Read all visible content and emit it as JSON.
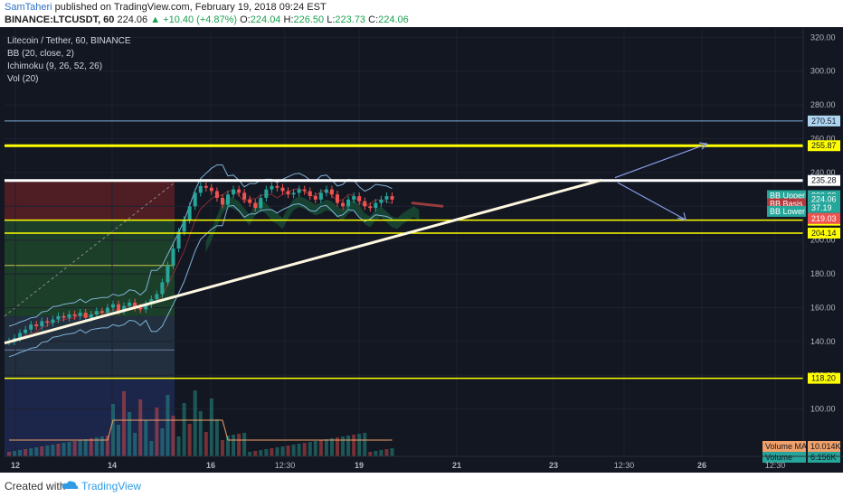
{
  "header": {
    "author": "SamTaheri",
    "published_text": " published on TradingView.com, February 19, 2018 09:24 EST",
    "symbol_line": "BINANCE:LTCUSDT, 60",
    "last": "224.06",
    "change": "▲ +10.40 (+4.87%)",
    "o_label": "O:",
    "o": "224.04",
    "h_label": "H:",
    "h": "226.50",
    "l_label": "L:",
    "l": "223.73",
    "c_label": "C:",
    "c": "224.06"
  },
  "legend": {
    "title": "Litecoin / Tether, 60, BINANCE",
    "indicators": [
      "BB (20, close, 2)",
      "Ichimoku (9, 26, 52, 26)",
      "Vol (20)"
    ]
  },
  "colors": {
    "background": "#131722",
    "candle_up": "#26a69a",
    "candle_down": "#ef5350",
    "yellow_level": "#ffff00",
    "white_level": "#ffffff",
    "bb": "#7fb2d8",
    "trendline": "#fff8e1",
    "arrow": "#8a9ee8",
    "fib_red": "#5a1f24",
    "fib_green": "#1f4a2c",
    "fib_blue": "#1f2a55"
  },
  "chart_data": {
    "type": "candlestick",
    "symbol": "LTCUSDT",
    "exchange": "BINANCE",
    "interval": "60",
    "ylim": [
      72,
      325
    ],
    "y_ticks": [
      100,
      120,
      140,
      160,
      180,
      200,
      220,
      240,
      260,
      280,
      300,
      320
    ],
    "y_tick_labels": [
      "100.00",
      "120.00",
      "140.00",
      "160.00",
      "180.00",
      "200.00",
      "220.00",
      "240.00",
      "260.00",
      "280.00",
      "300.00",
      "320.00"
    ],
    "x_ticks": [
      "12",
      "14",
      "16",
      "12:30",
      "19",
      "21",
      "23",
      "12:30",
      "26",
      "12:30"
    ],
    "x_tick_labels_bold": [
      "12",
      "14",
      "16",
      "19",
      "21",
      "23",
      "26"
    ],
    "horizontal_levels": [
      {
        "price": 270.51,
        "label": "270.51",
        "color": "#7fb2d8"
      },
      {
        "price": 255.87,
        "label": "255.87",
        "color": "#ffff00"
      },
      {
        "price": 235.28,
        "label": "235.28",
        "color": "#ffffff"
      },
      {
        "price": 211.78,
        "label": "211.78",
        "color": "#ffff00"
      },
      {
        "price": 204.14,
        "label": "204.14",
        "color": "#ffff00"
      },
      {
        "price": 118.2,
        "label": "118.20",
        "color": "#ffff00"
      }
    ],
    "price_labels": [
      {
        "text": "BB Upper",
        "value": "226.29",
        "color": "#26a69a"
      },
      {
        "text": "",
        "value": "224.06",
        "color": "#26a69a"
      },
      {
        "text": "BB Basis",
        "value": "",
        "color": "#b2383b"
      },
      {
        "text": "",
        "value": "37.19",
        "color": "#26a69a"
      },
      {
        "text": "BB Lower",
        "value": "",
        "color": "#26a69a"
      },
      {
        "text": "",
        "value": "219.03",
        "color": "#ef5350"
      }
    ],
    "volume_labels": [
      {
        "text": "Volume MA",
        "value": "10.014K"
      },
      {
        "text": "Volume",
        "value": "6.156K"
      }
    ],
    "close_series": [
      140,
      142,
      145,
      147,
      150,
      149,
      152,
      151,
      153,
      155,
      154,
      156,
      155,
      157,
      154,
      156,
      158,
      157,
      160,
      162,
      158,
      161,
      163,
      160,
      159,
      162,
      165,
      168,
      175,
      185,
      195,
      205,
      212,
      220,
      228,
      232,
      231,
      229,
      225,
      221,
      227,
      230,
      228,
      224,
      222,
      219,
      225,
      230,
      232,
      231,
      229,
      227,
      228,
      230,
      229,
      226,
      224,
      228,
      230,
      227,
      222,
      220,
      224,
      226,
      223,
      220,
      219,
      222,
      224,
      226,
      224
    ]
  }
}
